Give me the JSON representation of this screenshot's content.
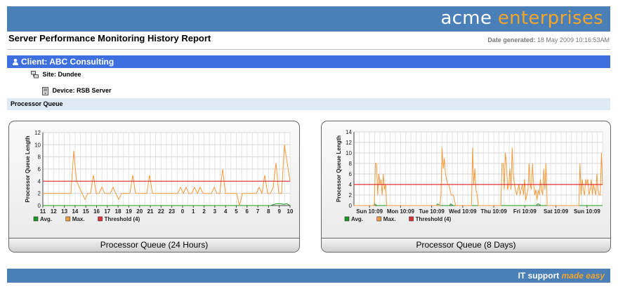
{
  "brand": {
    "name_part1": "acme",
    "name_part2": "enterprises"
  },
  "report": {
    "title": "Server Performance Monitoring History Report",
    "date_label": "Date generated:",
    "date_value": "18 May 2009 10:16:53AM"
  },
  "client": {
    "label": "Client: ABC Consulting"
  },
  "site": {
    "label": "Site: Dundee"
  },
  "device": {
    "label": "Device: RSB Server"
  },
  "section": {
    "title": "Processor Queue"
  },
  "footer": {
    "tagline_part1": "IT support",
    "tagline_part2": "made easy"
  },
  "colors": {
    "header_blue": "#4a7fb8",
    "client_blue": "#3d6fde",
    "brand_orange": "#f5a52a",
    "series_avg": "#1a9a1a",
    "series_max": "#f59a3c",
    "series_threshold": "#e03030"
  },
  "chart_data": [
    {
      "type": "line",
      "caption": "Processor Queue (24 Hours)",
      "ylabel": "Processor Queue Length",
      "xlabel": "",
      "ylim": [
        0,
        12
      ],
      "yticks": [
        0,
        2,
        4,
        6,
        8,
        10,
        12
      ],
      "xticks": [
        "11",
        "12",
        "13",
        "14",
        "15",
        "16",
        "17",
        "18",
        "19",
        "20",
        "21",
        "22",
        "23",
        "0",
        "1",
        "2",
        "3",
        "4",
        "5",
        "6",
        "7",
        "8",
        "9",
        "10"
      ],
      "grid": true,
      "legend": [
        "Avg.",
        "Max.",
        "Threshold (4)"
      ],
      "series": [
        {
          "name": "Avg.",
          "color": "#1a9a1a",
          "values": [
            0,
            0,
            0,
            0,
            0,
            0,
            0,
            0,
            0,
            0,
            0,
            0,
            0,
            0,
            0,
            0,
            0,
            0,
            0,
            0,
            0,
            0,
            0,
            0,
            0,
            0,
            0,
            0,
            0,
            0,
            0,
            0,
            0,
            0,
            0,
            0,
            0,
            0,
            0,
            0,
            0,
            0,
            0,
            0,
            0,
            0,
            0,
            0,
            0,
            0,
            0,
            0,
            0,
            0,
            0,
            0,
            0,
            0,
            0,
            0,
            0,
            0,
            0,
            0,
            0,
            0,
            0,
            0,
            0,
            0,
            0,
            0,
            0,
            0.2,
            0.3,
            0.3,
            0.2,
            0.3,
            0
          ]
        },
        {
          "name": "Max.",
          "color": "#f59a3c",
          "values": [
            2,
            2,
            2,
            2,
            2,
            2,
            2,
            2,
            2,
            2,
            2,
            9,
            4,
            3,
            2,
            1,
            2,
            2,
            5,
            2,
            2,
            3,
            2,
            2,
            2,
            3,
            2,
            1,
            2,
            2,
            2,
            2,
            5,
            2,
            2,
            2,
            2,
            2,
            5,
            2,
            2,
            2,
            2,
            2,
            2,
            2,
            2,
            2,
            2,
            3,
            2,
            3,
            2,
            2,
            3,
            2,
            3,
            2,
            2,
            2,
            2,
            3,
            2,
            2,
            6,
            2,
            2,
            2,
            2,
            2,
            0,
            2,
            2,
            2,
            2,
            2,
            2,
            3,
            2,
            5,
            2,
            2,
            3,
            7,
            2,
            2,
            10,
            7,
            4
          ]
        },
        {
          "name": "Threshold (4)",
          "color": "#e03030",
          "values": [
            4
          ]
        }
      ]
    },
    {
      "type": "line",
      "caption": "Processor Queue (8 Days)",
      "ylabel": "Processor Queue Length",
      "xlabel": "",
      "ylim": [
        0,
        14
      ],
      "yticks": [
        0,
        2,
        4,
        6,
        8,
        10,
        12,
        14
      ],
      "xticks": [
        "Sun 10:09",
        "Mon 10:09",
        "Tue 10:09",
        "Wed 10:09",
        "Thu 10:09",
        "Fri 10:09",
        "Sat 10:09",
        "Sun 10:09"
      ],
      "grid": true,
      "legend": [
        "Avg.",
        "Max.",
        "Threshold (4)"
      ],
      "series": [
        {
          "name": "Avg.",
          "color": "#1a9a1a",
          "values": [
            0,
            0,
            0,
            0,
            0,
            0,
            0,
            0,
            0,
            0,
            0,
            0,
            0,
            0,
            0,
            0,
            0,
            0,
            0,
            0.3,
            0.2,
            0,
            0,
            0,
            0,
            0,
            0,
            0,
            0,
            0,
            0,
            0,
            0,
            0,
            0,
            0,
            0,
            0,
            0,
            0,
            0,
            0,
            0,
            0,
            0,
            0,
            0,
            0,
            0,
            0,
            0,
            0,
            0,
            0,
            0,
            0,
            0,
            0,
            0,
            0,
            0,
            0,
            0,
            0,
            0,
            0,
            0,
            0,
            0,
            0,
            0,
            0,
            0,
            0,
            0,
            0,
            0,
            0.3,
            0.2,
            0,
            0,
            0,
            0,
            0,
            0,
            0,
            0,
            0,
            0,
            0.3,
            0.2,
            0,
            0,
            0,
            0,
            0,
            0,
            0,
            0,
            0,
            0,
            0,
            0,
            0,
            0,
            0,
            0,
            0,
            0,
            0,
            0,
            0,
            0,
            0,
            0,
            0,
            0,
            0,
            0,
            0,
            0,
            0,
            0,
            0,
            0,
            0,
            0,
            0,
            0,
            0,
            0,
            0,
            0,
            0,
            0,
            0,
            0,
            0,
            0,
            0,
            0,
            0,
            0,
            0,
            0,
            0,
            0,
            0,
            0,
            0,
            0,
            0,
            0,
            0,
            0,
            0,
            0,
            0,
            0,
            0,
            0,
            0,
            0,
            0,
            0,
            0,
            0,
            0,
            0,
            0.3,
            0.3,
            0.2,
            0,
            0,
            0,
            0,
            0,
            0,
            0,
            0,
            0,
            0,
            0,
            0,
            0,
            0,
            0,
            0,
            0,
            0,
            0,
            0,
            0,
            0,
            0,
            0,
            0,
            0,
            0,
            0,
            0,
            0,
            0,
            0,
            0,
            0,
            0,
            0,
            0,
            0,
            0,
            0,
            0,
            0,
            0,
            0,
            0,
            0,
            0,
            0,
            0,
            0,
            0,
            0,
            0,
            0,
            0,
            0,
            0,
            0
          ]
        },
        {
          "name": "Max.",
          "color": "#f59a3c",
          "values": [
            0,
            0,
            0,
            0,
            0,
            0,
            0,
            0,
            0,
            0,
            0,
            0,
            0,
            0,
            0,
            0,
            0,
            0,
            0,
            8,
            8,
            2,
            6,
            4,
            5,
            2,
            6,
            3,
            4,
            0,
            0,
            0,
            0,
            0,
            0,
            0,
            0,
            0,
            0,
            0,
            0,
            0,
            0,
            0,
            0,
            0,
            0,
            0,
            0,
            0,
            0,
            0,
            0,
            0,
            0,
            0,
            0,
            0,
            0,
            0,
            0,
            0,
            0,
            0,
            0,
            0,
            0,
            0,
            0,
            0,
            0,
            0,
            0,
            0,
            0,
            0,
            0,
            2,
            11,
            7,
            9,
            6,
            5,
            4,
            4,
            3,
            2,
            2,
            2,
            1,
            0,
            0,
            0,
            0,
            0,
            0,
            0,
            0,
            0,
            0,
            0,
            0,
            0,
            0,
            0,
            11,
            4,
            7,
            3,
            2,
            0,
            0,
            0,
            0,
            0,
            0,
            0,
            0,
            0,
            0,
            0,
            0,
            0,
            0,
            0,
            0,
            0,
            0,
            0,
            0,
            0,
            8,
            8,
            3,
            10,
            8,
            3,
            4,
            7,
            3,
            11,
            6,
            4,
            3,
            2,
            3,
            4,
            2,
            3,
            4,
            2,
            5,
            1,
            2,
            3,
            8,
            4,
            3,
            8,
            4,
            2,
            3,
            1,
            3,
            2,
            5,
            3,
            2,
            7,
            3,
            8,
            0,
            0,
            0,
            0,
            0,
            0,
            0,
            0,
            0,
            0,
            0,
            0,
            0,
            0,
            0,
            0,
            0,
            0,
            0,
            0,
            0,
            0,
            0,
            0,
            0,
            0,
            0,
            0,
            0,
            8,
            2,
            5,
            3,
            2,
            5,
            4,
            5,
            2,
            3,
            5,
            2,
            4,
            3,
            2,
            6,
            3,
            2,
            2,
            10,
            4
          ]
        },
        {
          "name": "Threshold (4)",
          "color": "#e03030",
          "values": [
            4
          ]
        }
      ]
    }
  ]
}
